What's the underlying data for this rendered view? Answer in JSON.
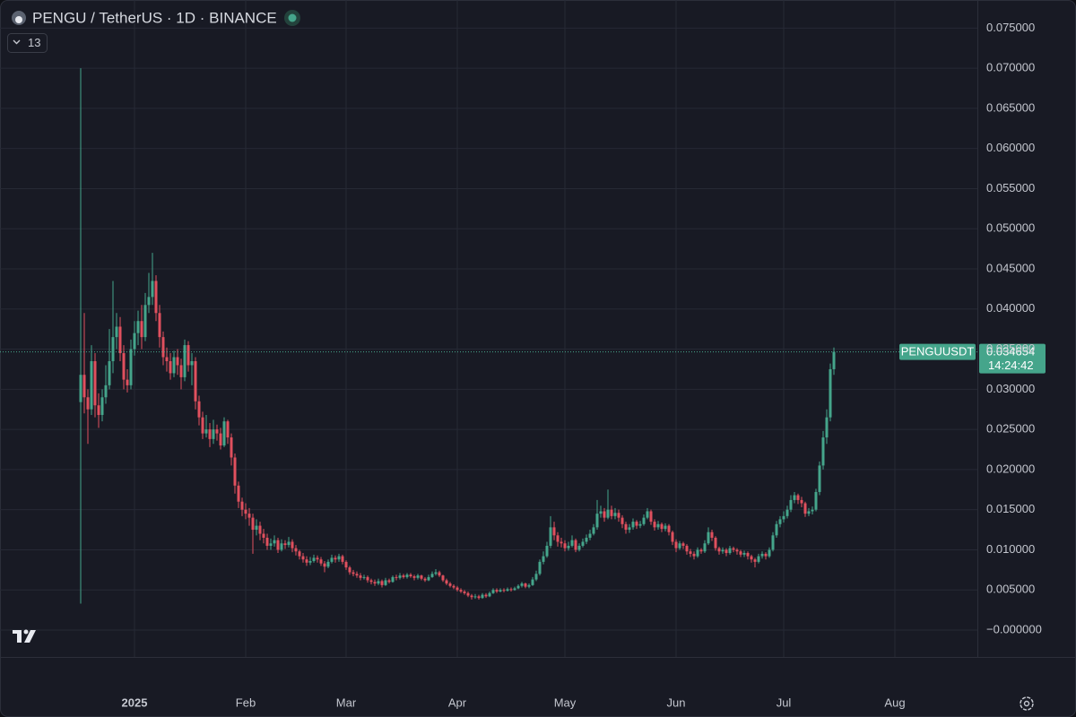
{
  "chart_data": {
    "type": "candlestick",
    "title": "PENGU / TetherUS · 1D · BINANCE",
    "indicator_count": 13,
    "symbol": "PENGUUSDT",
    "last_price": 0.034654,
    "countdown": "14:24:42",
    "up_color": "#45a58b",
    "down_color": "#e0505e",
    "grid": true,
    "ylim": [
      -0.00335,
      0.0785
    ],
    "yticks": [
      {
        "value": 0.075,
        "label": "0.075000"
      },
      {
        "value": 0.07,
        "label": "0.070000"
      },
      {
        "value": 0.065,
        "label": "0.065000"
      },
      {
        "value": 0.06,
        "label": "0.060000"
      },
      {
        "value": 0.055,
        "label": "0.055000"
      },
      {
        "value": 0.05,
        "label": "0.050000"
      },
      {
        "value": 0.045,
        "label": "0.045000"
      },
      {
        "value": 0.04,
        "label": "0.040000"
      },
      {
        "value": 0.035,
        "label": "0.035000"
      },
      {
        "value": 0.03,
        "label": "0.030000"
      },
      {
        "value": 0.025,
        "label": "0.025000"
      },
      {
        "value": 0.02,
        "label": "0.020000"
      },
      {
        "value": 0.015,
        "label": "0.015000"
      },
      {
        "value": 0.01,
        "label": "0.010000"
      },
      {
        "value": 0.005,
        "label": "0.005000"
      },
      {
        "value": 0,
        "label": "−0.000000"
      }
    ],
    "xlim": [
      -22.5,
      250
    ],
    "xticks": [
      {
        "value": 15,
        "label": "2025"
      },
      {
        "value": 46,
        "label": "Feb"
      },
      {
        "value": 74,
        "label": "Mar"
      },
      {
        "value": 105,
        "label": "Apr"
      },
      {
        "value": 135,
        "label": "May"
      },
      {
        "value": 166,
        "label": "Jun"
      },
      {
        "value": 196,
        "label": "Jul"
      },
      {
        "value": 227,
        "label": "Aug"
      }
    ],
    "open": [
      0.0284,
      0.0318,
      0.029,
      0.0275,
      0.0335,
      0.028,
      0.0268,
      0.029,
      0.0305,
      0.0335,
      0.0365,
      0.0378,
      0.0345,
      0.0312,
      0.0305,
      0.035,
      0.037,
      0.0385,
      0.0365,
      0.0405,
      0.0415,
      0.0435,
      0.0395,
      0.0365,
      0.034,
      0.0335,
      0.032,
      0.034,
      0.033,
      0.0315,
      0.0355,
      0.033,
      0.0335,
      0.0285,
      0.0265,
      0.0245,
      0.025,
      0.0238,
      0.025,
      0.0245,
      0.023,
      0.026,
      0.024,
      0.0215,
      0.018,
      0.016,
      0.015,
      0.0145,
      0.014,
      0.0125,
      0.013,
      0.012,
      0.0115,
      0.0105,
      0.0108,
      0.0112,
      0.01,
      0.0108,
      0.0106,
      0.011,
      0.0102,
      0.0098,
      0.0092,
      0.0088,
      0.0084,
      0.0086,
      0.009,
      0.0088,
      0.0083,
      0.0079,
      0.0085,
      0.009,
      0.0088,
      0.0092,
      0.0085,
      0.0078,
      0.0072,
      0.007,
      0.0068,
      0.0065,
      0.0066,
      0.0062,
      0.006,
      0.0058,
      0.0061,
      0.0056,
      0.0062,
      0.006,
      0.0066,
      0.0065,
      0.0068,
      0.0066,
      0.0069,
      0.0067,
      0.0065,
      0.0068,
      0.0064,
      0.0062,
      0.0066,
      0.007,
      0.0072,
      0.0068,
      0.0062,
      0.0058,
      0.0055,
      0.0053,
      0.005,
      0.0048,
      0.0046,
      0.0043,
      0.0041,
      0.0042,
      0.004,
      0.0044,
      0.0042,
      0.0046,
      0.005,
      0.0048,
      0.005,
      0.0049,
      0.0051,
      0.005,
      0.0052,
      0.0055,
      0.0058,
      0.0054,
      0.0056,
      0.0063,
      0.007,
      0.0085,
      0.0092,
      0.0105,
      0.0128,
      0.0118,
      0.011,
      0.0108,
      0.0102,
      0.0105,
      0.0112,
      0.01,
      0.0105,
      0.011,
      0.0115,
      0.012,
      0.0128,
      0.0145,
      0.0148,
      0.014,
      0.015,
      0.0142,
      0.0146,
      0.014,
      0.0132,
      0.0125,
      0.0128,
      0.0135,
      0.013,
      0.0132,
      0.014,
      0.0148,
      0.0135,
      0.0128,
      0.0132,
      0.0126,
      0.013,
      0.0122,
      0.011,
      0.0102,
      0.0108,
      0.0105,
      0.0098,
      0.0095,
      0.0092,
      0.01,
      0.0098,
      0.0108,
      0.0122,
      0.0115,
      0.0102,
      0.0098,
      0.01,
      0.0096,
      0.0102,
      0.01,
      0.0098,
      0.0094,
      0.0096,
      0.0092,
      0.0088,
      0.0085,
      0.0092,
      0.0095,
      0.0092,
      0.01,
      0.0118,
      0.0132,
      0.0138,
      0.0142,
      0.015,
      0.0162,
      0.0168,
      0.0162,
      0.0158,
      0.0145,
      0.0148,
      0.015,
      0.0172,
      0.0205,
      0.024,
      0.0265,
      0.0325
    ],
    "high": [
      0.07,
      0.0395,
      0.03,
      0.0355,
      0.0345,
      0.0295,
      0.03,
      0.033,
      0.0375,
      0.0435,
      0.0395,
      0.039,
      0.0355,
      0.0325,
      0.0362,
      0.0385,
      0.0398,
      0.0405,
      0.042,
      0.0445,
      0.047,
      0.0442,
      0.0405,
      0.0372,
      0.0352,
      0.0345,
      0.0348,
      0.035,
      0.0338,
      0.0362,
      0.036,
      0.0345,
      0.034,
      0.0292,
      0.0272,
      0.0268,
      0.0258,
      0.0262,
      0.0256,
      0.0252,
      0.0265,
      0.0262,
      0.0245,
      0.022,
      0.0185,
      0.0165,
      0.0158,
      0.0152,
      0.0145,
      0.0138,
      0.0135,
      0.0126,
      0.012,
      0.0114,
      0.0118,
      0.0115,
      0.0113,
      0.0112,
      0.0116,
      0.0113,
      0.0106,
      0.01,
      0.0096,
      0.0092,
      0.0091,
      0.0094,
      0.0093,
      0.0091,
      0.0086,
      0.0088,
      0.0094,
      0.0093,
      0.0095,
      0.0094,
      0.0087,
      0.008,
      0.0075,
      0.0073,
      0.0071,
      0.0069,
      0.0068,
      0.0064,
      0.0063,
      0.0064,
      0.0063,
      0.0065,
      0.0064,
      0.0068,
      0.0069,
      0.0071,
      0.007,
      0.0071,
      0.0071,
      0.0069,
      0.007,
      0.0069,
      0.0066,
      0.0069,
      0.0073,
      0.0076,
      0.0074,
      0.0069,
      0.0064,
      0.006,
      0.0057,
      0.0055,
      0.0052,
      0.005,
      0.0048,
      0.0045,
      0.0045,
      0.0044,
      0.0046,
      0.0046,
      0.0048,
      0.0052,
      0.0052,
      0.0052,
      0.0052,
      0.0053,
      0.0053,
      0.0054,
      0.0057,
      0.006,
      0.0059,
      0.0058,
      0.0066,
      0.0074,
      0.0088,
      0.0098,
      0.011,
      0.0142,
      0.0135,
      0.0122,
      0.0115,
      0.0112,
      0.011,
      0.0118,
      0.0114,
      0.0108,
      0.0114,
      0.0119,
      0.0125,
      0.0132,
      0.0162,
      0.0155,
      0.0152,
      0.0175,
      0.0155,
      0.0152,
      0.015,
      0.0143,
      0.0135,
      0.0132,
      0.0139,
      0.0137,
      0.0136,
      0.0144,
      0.0152,
      0.015,
      0.0138,
      0.0136,
      0.0134,
      0.0133,
      0.0132,
      0.0124,
      0.0113,
      0.0111,
      0.011,
      0.0107,
      0.0101,
      0.0098,
      0.0103,
      0.0102,
      0.0112,
      0.0128,
      0.0125,
      0.0117,
      0.0104,
      0.0103,
      0.0102,
      0.0105,
      0.0104,
      0.0102,
      0.01,
      0.0099,
      0.0098,
      0.0094,
      0.009,
      0.0095,
      0.0098,
      0.0097,
      0.0103,
      0.0122,
      0.0136,
      0.0142,
      0.0148,
      0.0155,
      0.0168,
      0.0172,
      0.017,
      0.0166,
      0.016,
      0.0152,
      0.0154,
      0.0176,
      0.021,
      0.0248,
      0.0275,
      0.0332,
      0.0352
    ],
    "low": [
      0.0033,
      0.027,
      0.0232,
      0.0268,
      0.0265,
      0.0252,
      0.026,
      0.0282,
      0.03,
      0.032,
      0.035,
      0.0335,
      0.03,
      0.0296,
      0.03,
      0.0342,
      0.0355,
      0.035,
      0.036,
      0.0395,
      0.0405,
      0.0385,
      0.0352,
      0.033,
      0.0322,
      0.0312,
      0.0315,
      0.0318,
      0.03,
      0.031,
      0.0322,
      0.0305,
      0.0275,
      0.0255,
      0.0238,
      0.024,
      0.0228,
      0.0232,
      0.0236,
      0.0225,
      0.0228,
      0.0232,
      0.0205,
      0.017,
      0.0152,
      0.0142,
      0.0138,
      0.013,
      0.0095,
      0.0118,
      0.0112,
      0.0108,
      0.01,
      0.01,
      0.0104,
      0.0096,
      0.0098,
      0.0101,
      0.0103,
      0.0097,
      0.0093,
      0.0088,
      0.0084,
      0.008,
      0.0081,
      0.0084,
      0.0084,
      0.008,
      0.0072,
      0.0077,
      0.0083,
      0.0084,
      0.0085,
      0.0082,
      0.0075,
      0.0069,
      0.0067,
      0.0065,
      0.0062,
      0.0063,
      0.0059,
      0.0057,
      0.0055,
      0.0056,
      0.0053,
      0.0055,
      0.0058,
      0.0059,
      0.0062,
      0.0063,
      0.0064,
      0.0064,
      0.0065,
      0.0062,
      0.0063,
      0.0062,
      0.006,
      0.0061,
      0.0065,
      0.0068,
      0.0066,
      0.006,
      0.0056,
      0.0053,
      0.0051,
      0.0048,
      0.0046,
      0.0044,
      0.0041,
      0.0038,
      0.0039,
      0.0038,
      0.0039,
      0.004,
      0.0041,
      0.0045,
      0.0046,
      0.0047,
      0.0047,
      0.0048,
      0.0048,
      0.0049,
      0.0051,
      0.0053,
      0.0052,
      0.0052,
      0.0055,
      0.0061,
      0.0068,
      0.0082,
      0.009,
      0.0102,
      0.0112,
      0.0104,
      0.0103,
      0.0098,
      0.0099,
      0.0103,
      0.0097,
      0.0098,
      0.0103,
      0.0107,
      0.0112,
      0.0118,
      0.0125,
      0.014,
      0.0135,
      0.0138,
      0.0138,
      0.0138,
      0.0135,
      0.0127,
      0.012,
      0.0121,
      0.0125,
      0.0126,
      0.0127,
      0.013,
      0.0138,
      0.0131,
      0.0124,
      0.0125,
      0.0122,
      0.0123,
      0.0118,
      0.0106,
      0.0097,
      0.01,
      0.0101,
      0.0094,
      0.0091,
      0.0088,
      0.009,
      0.0095,
      0.0096,
      0.0106,
      0.0111,
      0.0099,
      0.0094,
      0.0095,
      0.0092,
      0.0094,
      0.0097,
      0.0094,
      0.0091,
      0.0091,
      0.0088,
      0.0084,
      0.0078,
      0.0083,
      0.0089,
      0.0088,
      0.009,
      0.0098,
      0.0115,
      0.0128,
      0.0134,
      0.0139,
      0.0147,
      0.0158,
      0.0157,
      0.0153,
      0.0141,
      0.0142,
      0.0144,
      0.0148,
      0.0168,
      0.02,
      0.0232,
      0.026,
      0.0318
    ],
    "close": [
      0.0318,
      0.029,
      0.0275,
      0.0335,
      0.028,
      0.0268,
      0.029,
      0.0305,
      0.0335,
      0.0365,
      0.0378,
      0.0345,
      0.0312,
      0.0305,
      0.035,
      0.037,
      0.0385,
      0.0365,
      0.0405,
      0.0415,
      0.0435,
      0.0395,
      0.0365,
      0.034,
      0.0335,
      0.032,
      0.034,
      0.033,
      0.0315,
      0.0355,
      0.033,
      0.0335,
      0.0285,
      0.0265,
      0.0245,
      0.025,
      0.0238,
      0.025,
      0.0245,
      0.023,
      0.026,
      0.024,
      0.0215,
      0.018,
      0.016,
      0.015,
      0.0145,
      0.014,
      0.0125,
      0.013,
      0.012,
      0.0115,
      0.0105,
      0.0108,
      0.0112,
      0.01,
      0.0108,
      0.0106,
      0.011,
      0.0102,
      0.0098,
      0.0092,
      0.0088,
      0.0084,
      0.0086,
      0.009,
      0.0088,
      0.0083,
      0.0079,
      0.0085,
      0.009,
      0.0088,
      0.0092,
      0.0085,
      0.0078,
      0.0072,
      0.007,
      0.0068,
      0.0065,
      0.0066,
      0.0062,
      0.006,
      0.0058,
      0.0061,
      0.0056,
      0.0062,
      0.006,
      0.0066,
      0.0065,
      0.0068,
      0.0066,
      0.0069,
      0.0067,
      0.0065,
      0.0068,
      0.0064,
      0.0062,
      0.0066,
      0.007,
      0.0072,
      0.0068,
      0.0062,
      0.0058,
      0.0055,
      0.0053,
      0.005,
      0.0048,
      0.0046,
      0.0043,
      0.0041,
      0.0042,
      0.004,
      0.0044,
      0.0042,
      0.0046,
      0.005,
      0.0048,
      0.005,
      0.0049,
      0.0051,
      0.005,
      0.0052,
      0.0055,
      0.0058,
      0.0054,
      0.0056,
      0.0063,
      0.007,
      0.0085,
      0.0092,
      0.0105,
      0.0128,
      0.0118,
      0.011,
      0.0108,
      0.0102,
      0.0105,
      0.0112,
      0.01,
      0.0105,
      0.011,
      0.0115,
      0.012,
      0.0128,
      0.0145,
      0.0148,
      0.014,
      0.015,
      0.0142,
      0.0146,
      0.014,
      0.0132,
      0.0125,
      0.0128,
      0.0135,
      0.013,
      0.0132,
      0.014,
      0.0148,
      0.0135,
      0.0128,
      0.0132,
      0.0126,
      0.013,
      0.0122,
      0.011,
      0.0102,
      0.0108,
      0.0105,
      0.0098,
      0.0095,
      0.0092,
      0.01,
      0.0098,
      0.0108,
      0.0122,
      0.0115,
      0.0102,
      0.0098,
      0.01,
      0.0096,
      0.0102,
      0.01,
      0.0098,
      0.0094,
      0.0096,
      0.0092,
      0.0088,
      0.0085,
      0.0092,
      0.0095,
      0.0092,
      0.01,
      0.0118,
      0.0132,
      0.0138,
      0.0142,
      0.015,
      0.0162,
      0.0168,
      0.0162,
      0.0158,
      0.0145,
      0.0148,
      0.015,
      0.0172,
      0.0205,
      0.024,
      0.0265,
      0.0325,
      0.034654
    ]
  }
}
